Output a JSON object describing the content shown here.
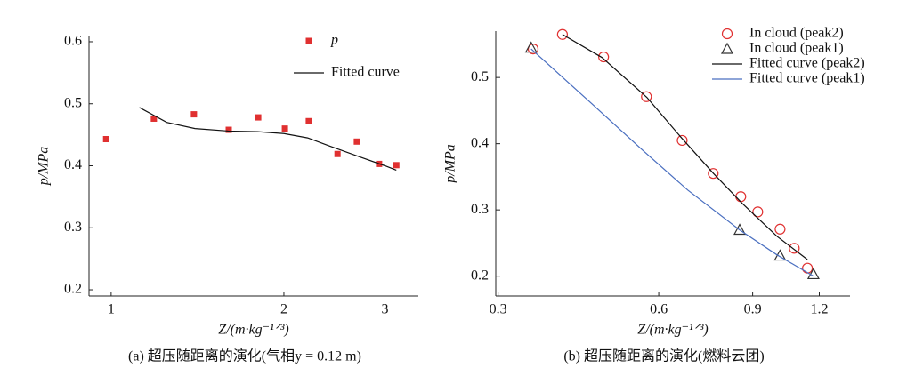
{
  "chart_data": [
    {
      "type": "scatter",
      "caption": "(a) 超压随距离的演化(气相y = 0.12 m)",
      "xlabel": "Z/(m·kg⁻¹ᐟ³)",
      "ylabel": "p/MPa",
      "xscale": "log",
      "xlim": [
        0.915,
        3.43
      ],
      "ylim": [
        0.19,
        0.61
      ],
      "xticks": [
        1,
        2,
        3
      ],
      "yticks": [
        0.2,
        0.3,
        0.4,
        0.5,
        0.6
      ],
      "legend": "upper right",
      "series": [
        {
          "name": "p",
          "mode": "markers",
          "marker": "square",
          "color": "#e03030",
          "x": [
            0.98,
            1.187,
            1.394,
            1.603,
            1.804,
            2.008,
            2.21,
            2.48,
            2.68,
            2.93,
            3.14
          ],
          "values": [
            0.443,
            0.476,
            0.483,
            0.458,
            0.478,
            0.46,
            0.472,
            0.419,
            0.439,
            0.403,
            0.401
          ]
        },
        {
          "name": "Fitted curve",
          "mode": "line",
          "color": "#111111",
          "x": [
            1.12,
            1.25,
            1.4,
            1.6,
            1.8,
            2.0,
            2.2,
            2.4,
            2.7,
            3.0,
            3.14
          ],
          "values": [
            0.494,
            0.47,
            0.46,
            0.456,
            0.455,
            0.452,
            0.445,
            0.432,
            0.415,
            0.4,
            0.393
          ]
        }
      ]
    },
    {
      "type": "scatter",
      "caption": "(b) 超压随距离的演化(燃料云团)",
      "xlabel": "Z/(m·kg⁻¹ᐟ³)",
      "ylabel": "p/MPa",
      "xscale": "log",
      "xlim": [
        0.297,
        1.37
      ],
      "ylim": [
        0.17,
        0.57
      ],
      "xticks": [
        0.3,
        0.6,
        0.9,
        1.2
      ],
      "yticks": [
        0.2,
        0.3,
        0.4,
        0.5
      ],
      "legend": "upper right",
      "series": [
        {
          "name": "In cloud (peak2)",
          "mode": "markers",
          "marker": "circle",
          "color": "#e03030",
          "x": [
            0.349,
            0.396,
            0.473,
            0.569,
            0.664,
            0.759,
            0.855,
            0.92,
            1.013,
            1.077,
            1.14
          ],
          "values": [
            0.543,
            0.565,
            0.531,
            0.471,
            0.405,
            0.355,
            0.32,
            0.297,
            0.271,
            0.242,
            0.212
          ]
        },
        {
          "name": "In cloud (peak1)",
          "mode": "markers",
          "marker": "triangle",
          "color": "#333333",
          "x": [
            0.346,
            0.851,
            1.013,
            1.17
          ],
          "values": [
            0.545,
            0.27,
            0.231,
            0.203
          ]
        },
        {
          "name": "Fitted curve (peak2)",
          "mode": "line",
          "color": "#111111",
          "x": [
            0.396,
            0.47,
            0.57,
            0.66,
            0.76,
            0.86,
            1.0,
            1.14
          ],
          "values": [
            0.565,
            0.53,
            0.47,
            0.41,
            0.355,
            0.31,
            0.26,
            0.225
          ]
        },
        {
          "name": "Fitted curve (peak1)",
          "mode": "line",
          "color": "#4a6fc0",
          "x": [
            0.346,
            0.45,
            0.56,
            0.68,
            0.85,
            1.0,
            1.17
          ],
          "values": [
            0.543,
            0.46,
            0.39,
            0.33,
            0.27,
            0.232,
            0.2
          ]
        }
      ]
    }
  ]
}
